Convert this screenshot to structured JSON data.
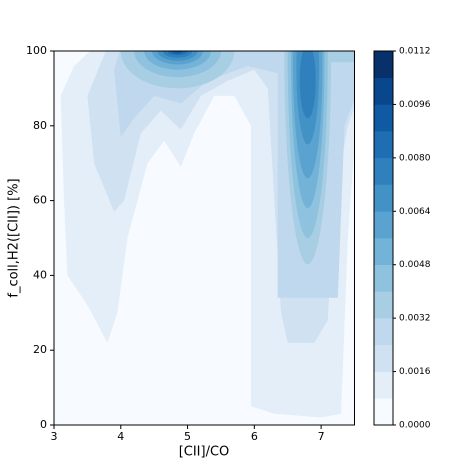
{
  "chart_data": {
    "type": "contour",
    "x_label": "[CII]/CO",
    "y_label": "f_coll,H2([CII]) [%]",
    "xlim": [
      3,
      7.5
    ],
    "ylim": [
      0,
      100
    ],
    "xticks": [
      3,
      4,
      5,
      6,
      7
    ],
    "yticks": [
      0,
      20,
      40,
      60,
      80,
      100
    ],
    "levels": [
      0,
      0.0008,
      0.0016,
      0.0024,
      0.0032,
      0.004,
      0.0048,
      0.0056,
      0.0064,
      0.0072,
      0.008,
      0.0088,
      0.0096,
      0.0104,
      0.0112
    ],
    "colors": [
      "#f7fbff",
      "#e3eef9",
      "#d0e1f2",
      "#bfd8ed",
      "#a8cee4",
      "#8fc2de",
      "#73b3d8",
      "#5aa2cf",
      "#4292c6",
      "#3080bd",
      "#1f6eb3",
      "#0f5aa3",
      "#08478d",
      "#08306b"
    ],
    "colorbar_ticks": [
      {
        "value": 0,
        "label": "0.0000"
      },
      {
        "value": 0.0016,
        "label": "0.0016"
      },
      {
        "value": 0.0032,
        "label": "0.0032"
      },
      {
        "value": 0.0048,
        "label": "0.0048"
      },
      {
        "value": 0.0064,
        "label": "0.0064"
      },
      {
        "value": 0.008,
        "label": "0.0080"
      },
      {
        "value": 0.0096,
        "label": "0.0096"
      },
      {
        "value": 0.0112,
        "label": "0.0112"
      }
    ]
  }
}
